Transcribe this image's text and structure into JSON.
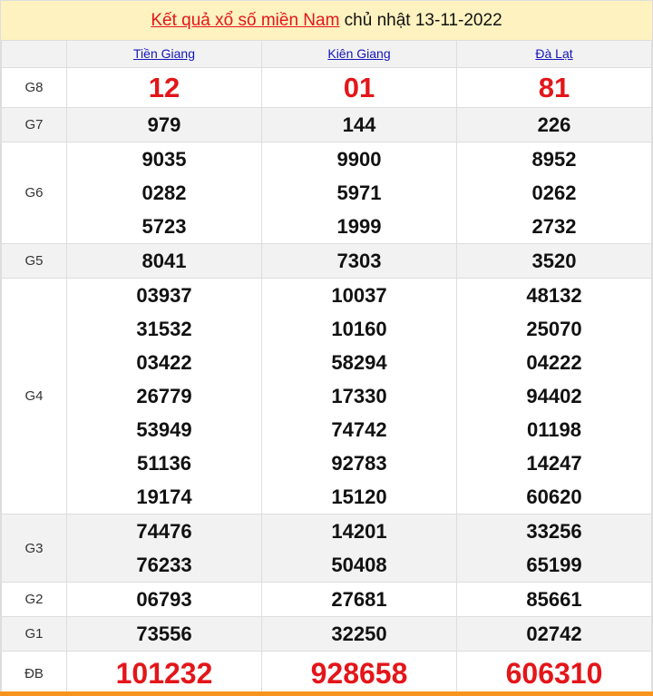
{
  "title": {
    "link": "Kết quả xổ số miền Nam",
    "rest": " chủ nhật 13-11-2022"
  },
  "provinces": [
    "Tiền Giang",
    "Kiên Giang",
    "Đà Lạt"
  ],
  "prizes": [
    {
      "label": "G8",
      "values": [
        [
          "12"
        ],
        [
          "01"
        ],
        [
          "81"
        ]
      ]
    },
    {
      "label": "G7",
      "values": [
        [
          "979"
        ],
        [
          "144"
        ],
        [
          "226"
        ]
      ]
    },
    {
      "label": "G6",
      "values": [
        [
          "9035",
          "0282",
          "5723"
        ],
        [
          "9900",
          "5971",
          "1999"
        ],
        [
          "8952",
          "0262",
          "2732"
        ]
      ]
    },
    {
      "label": "G5",
      "values": [
        [
          "8041"
        ],
        [
          "7303"
        ],
        [
          "3520"
        ]
      ]
    },
    {
      "label": "G4",
      "values": [
        [
          "03937",
          "31532",
          "03422",
          "26779",
          "53949",
          "51136",
          "19174"
        ],
        [
          "10037",
          "10160",
          "58294",
          "17330",
          "74742",
          "92783",
          "15120"
        ],
        [
          "48132",
          "25070",
          "04222",
          "94402",
          "01198",
          "14247",
          "60620"
        ]
      ]
    },
    {
      "label": "G3",
      "values": [
        [
          "74476",
          "76233"
        ],
        [
          "14201",
          "50408"
        ],
        [
          "33256",
          "65199"
        ]
      ]
    },
    {
      "label": "G2",
      "values": [
        [
          "06793"
        ],
        [
          "27681"
        ],
        [
          "85661"
        ]
      ]
    },
    {
      "label": "G1",
      "values": [
        [
          "73556"
        ],
        [
          "32250"
        ],
        [
          "02742"
        ]
      ]
    },
    {
      "label": "ĐB",
      "values": [
        [
          "101232"
        ],
        [
          "928658"
        ],
        [
          "606310"
        ]
      ]
    }
  ],
  "colors": {
    "accent": "#e3161a",
    "title_bg": "#fdf2c0",
    "link": "#1515b8",
    "footer_bar": "#f7941d"
  }
}
